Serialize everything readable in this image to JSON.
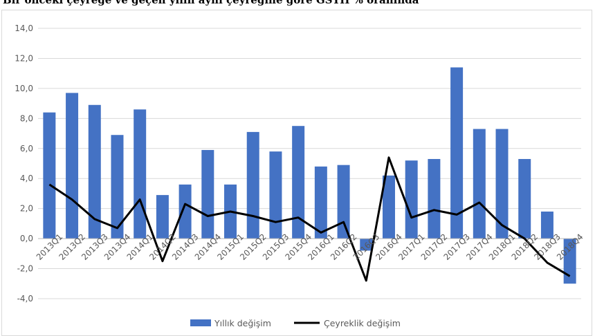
{
  "chart_data": {
    "type": "bar",
    "title": "Bir önceki çeyreğe ve geçen yılın aynı çeyreğine göre GSYH % oranında",
    "categories": [
      "2013Q1",
      "2013Q2",
      "2013Q3",
      "2013Q4",
      "2014Q1",
      "2014Q2",
      "2014Q3",
      "2014Q4",
      "2015Q1",
      "2015Q2",
      "2015Q3",
      "2015Q4",
      "2016Q1",
      "2016Q2",
      "2016Q3",
      "2016Q4",
      "2017Q1",
      "2017Q2",
      "2017Q3",
      "2017Q4",
      "2018Q1",
      "2018Q2",
      "2018Q3",
      "2018Q4"
    ],
    "series": [
      {
        "name": "Yıllık değişim",
        "type": "bar",
        "color": "#4472c4",
        "values": [
          8.4,
          9.7,
          8.9,
          6.9,
          8.6,
          2.9,
          3.6,
          5.9,
          3.6,
          7.1,
          5.8,
          7.5,
          4.8,
          4.9,
          -0.8,
          4.2,
          5.2,
          5.3,
          11.4,
          7.3,
          7.3,
          5.3,
          1.8,
          -3.0
        ]
      },
      {
        "name": "Çeyreklik değişim",
        "type": "line",
        "color": "#000000",
        "values": [
          3.6,
          2.6,
          1.3,
          0.7,
          2.6,
          -1.5,
          2.3,
          1.5,
          1.8,
          1.5,
          1.1,
          1.4,
          0.4,
          1.1,
          -2.8,
          5.4,
          1.4,
          1.9,
          1.6,
          2.4,
          0.9,
          0.0,
          -1.6,
          -2.5
        ]
      }
    ],
    "ylim": [
      -4.0,
      14.0
    ],
    "yticks": [
      "-4,0",
      "-2,0",
      "0,0",
      "2,0",
      "4,0",
      "6,0",
      "8,0",
      "10,0",
      "12,0",
      "14,0"
    ],
    "grid": true,
    "legend": "bottom"
  }
}
